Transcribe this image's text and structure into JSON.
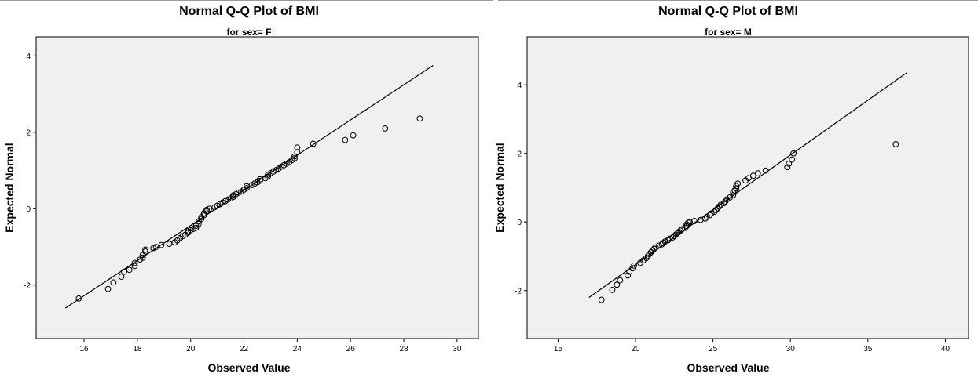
{
  "chart_data": [
    {
      "type": "scatter",
      "title": "Normal Q-Q Plot of BMI",
      "subtitle": "for sex= F",
      "xlabel": "Observed Value",
      "ylabel": "Expected Normal",
      "xlim": [
        14.2,
        30.8
      ],
      "ylim": [
        -3.4,
        4.5
      ],
      "xticks": [
        16,
        18,
        20,
        22,
        24,
        26,
        28,
        30
      ],
      "yticks": [
        -2,
        0,
        2,
        4
      ],
      "reference_line": {
        "x": [
          15.3,
          29.1
        ],
        "y": [
          -2.6,
          3.75
        ]
      },
      "grid": false,
      "points": [
        [
          15.8,
          -2.35
        ],
        [
          16.9,
          -2.1
        ],
        [
          17.1,
          -1.93
        ],
        [
          17.4,
          -1.78
        ],
        [
          17.5,
          -1.65
        ],
        [
          17.7,
          -1.6
        ],
        [
          17.9,
          -1.5
        ],
        [
          17.9,
          -1.42
        ],
        [
          18.1,
          -1.33
        ],
        [
          18.2,
          -1.28
        ],
        [
          18.2,
          -1.21
        ],
        [
          18.3,
          -1.12
        ],
        [
          18.3,
          -1.07
        ],
        [
          18.6,
          -1.03
        ],
        [
          18.7,
          -1.0
        ],
        [
          18.9,
          -0.95
        ],
        [
          19.2,
          -0.92
        ],
        [
          19.4,
          -0.88
        ],
        [
          19.5,
          -0.83
        ],
        [
          19.6,
          -0.77
        ],
        [
          19.7,
          -0.72
        ],
        [
          19.8,
          -0.68
        ],
        [
          19.9,
          -0.63
        ],
        [
          19.9,
          -0.59
        ],
        [
          20.0,
          -0.56
        ],
        [
          20.1,
          -0.53
        ],
        [
          20.2,
          -0.5
        ],
        [
          20.2,
          -0.45
        ],
        [
          20.3,
          -0.4
        ],
        [
          20.3,
          -0.33
        ],
        [
          20.4,
          -0.27
        ],
        [
          20.4,
          -0.22
        ],
        [
          20.5,
          -0.17
        ],
        [
          20.5,
          -0.12
        ],
        [
          20.6,
          -0.07
        ],
        [
          20.6,
          -0.03
        ],
        [
          20.7,
          0.0
        ],
        [
          20.9,
          0.04
        ],
        [
          21.0,
          0.08
        ],
        [
          21.1,
          0.12
        ],
        [
          21.2,
          0.16
        ],
        [
          21.3,
          0.2
        ],
        [
          21.4,
          0.24
        ],
        [
          21.5,
          0.27
        ],
        [
          21.6,
          0.31
        ],
        [
          21.6,
          0.35
        ],
        [
          21.7,
          0.38
        ],
        [
          21.8,
          0.42
        ],
        [
          21.9,
          0.45
        ],
        [
          22.0,
          0.5
        ],
        [
          22.1,
          0.54
        ],
        [
          22.1,
          0.59
        ],
        [
          22.3,
          0.62
        ],
        [
          22.4,
          0.66
        ],
        [
          22.5,
          0.69
        ],
        [
          22.6,
          0.73
        ],
        [
          22.6,
          0.77
        ],
        [
          22.8,
          0.8
        ],
        [
          22.9,
          0.84
        ],
        [
          22.9,
          0.89
        ],
        [
          23.0,
          0.93
        ],
        [
          23.1,
          0.97
        ],
        [
          23.2,
          1.01
        ],
        [
          23.3,
          1.05
        ],
        [
          23.4,
          1.1
        ],
        [
          23.5,
          1.14
        ],
        [
          23.6,
          1.18
        ],
        [
          23.7,
          1.22
        ],
        [
          23.8,
          1.27
        ],
        [
          23.9,
          1.32
        ],
        [
          23.9,
          1.37
        ],
        [
          24.0,
          1.48
        ],
        [
          24.0,
          1.6
        ],
        [
          24.6,
          1.7
        ],
        [
          25.8,
          1.8
        ],
        [
          26.1,
          1.92
        ],
        [
          27.3,
          2.1
        ],
        [
          28.6,
          2.36
        ]
      ]
    },
    {
      "type": "scatter",
      "title": "Normal Q-Q Plot of BMI",
      "subtitle": "for sex= M",
      "xlabel": "Observed Value",
      "ylabel": "Expected Normal",
      "xlim": [
        13.0,
        41.5
      ],
      "ylim": [
        -3.4,
        5.4
      ],
      "xticks": [
        15,
        20,
        25,
        30,
        35,
        40
      ],
      "yticks": [
        -2,
        0,
        2,
        4
      ],
      "reference_line": {
        "x": [
          17.0,
          37.5
        ],
        "y": [
          -2.2,
          4.35
        ]
      },
      "grid": false,
      "points": [
        [
          17.8,
          -2.27
        ],
        [
          18.5,
          -1.98
        ],
        [
          18.8,
          -1.83
        ],
        [
          19.0,
          -1.7
        ],
        [
          19.5,
          -1.56
        ],
        [
          19.6,
          -1.45
        ],
        [
          19.8,
          -1.35
        ],
        [
          19.9,
          -1.27
        ],
        [
          20.3,
          -1.19
        ],
        [
          20.5,
          -1.12
        ],
        [
          20.7,
          -1.05
        ],
        [
          20.8,
          -0.99
        ],
        [
          20.9,
          -0.93
        ],
        [
          21.0,
          -0.88
        ],
        [
          21.1,
          -0.83
        ],
        [
          21.2,
          -0.78
        ],
        [
          21.3,
          -0.74
        ],
        [
          21.5,
          -0.69
        ],
        [
          21.7,
          -0.65
        ],
        [
          21.8,
          -0.61
        ],
        [
          21.9,
          -0.57
        ],
        [
          22.1,
          -0.53
        ],
        [
          22.2,
          -0.49
        ],
        [
          22.4,
          -0.45
        ],
        [
          22.5,
          -0.41
        ],
        [
          22.6,
          -0.37
        ],
        [
          22.7,
          -0.33
        ],
        [
          22.8,
          -0.29
        ],
        [
          22.9,
          -0.25
        ],
        [
          23.0,
          -0.21
        ],
        [
          23.2,
          -0.17
        ],
        [
          23.3,
          -0.12
        ],
        [
          23.3,
          -0.07
        ],
        [
          23.4,
          -0.02
        ],
        [
          23.5,
          0.0
        ],
        [
          23.8,
          0.03
        ],
        [
          24.2,
          0.06
        ],
        [
          24.5,
          0.1
        ],
        [
          24.6,
          0.15
        ],
        [
          24.8,
          0.2
        ],
        [
          24.9,
          0.25
        ],
        [
          25.1,
          0.3
        ],
        [
          25.2,
          0.35
        ],
        [
          25.3,
          0.4
        ],
        [
          25.4,
          0.45
        ],
        [
          25.5,
          0.5
        ],
        [
          25.7,
          0.55
        ],
        [
          25.8,
          0.6
        ],
        [
          25.9,
          0.66
        ],
        [
          26.1,
          0.72
        ],
        [
          26.3,
          0.78
        ],
        [
          26.3,
          0.86
        ],
        [
          26.4,
          0.92
        ],
        [
          26.5,
          0.98
        ],
        [
          26.5,
          1.05
        ],
        [
          26.6,
          1.12
        ],
        [
          27.1,
          1.21
        ],
        [
          27.3,
          1.28
        ],
        [
          27.6,
          1.35
        ],
        [
          27.9,
          1.42
        ],
        [
          28.4,
          1.5
        ],
        [
          29.8,
          1.6
        ],
        [
          29.9,
          1.7
        ],
        [
          30.1,
          1.82
        ],
        [
          30.2,
          2.0
        ],
        [
          36.8,
          2.27
        ]
      ]
    }
  ]
}
